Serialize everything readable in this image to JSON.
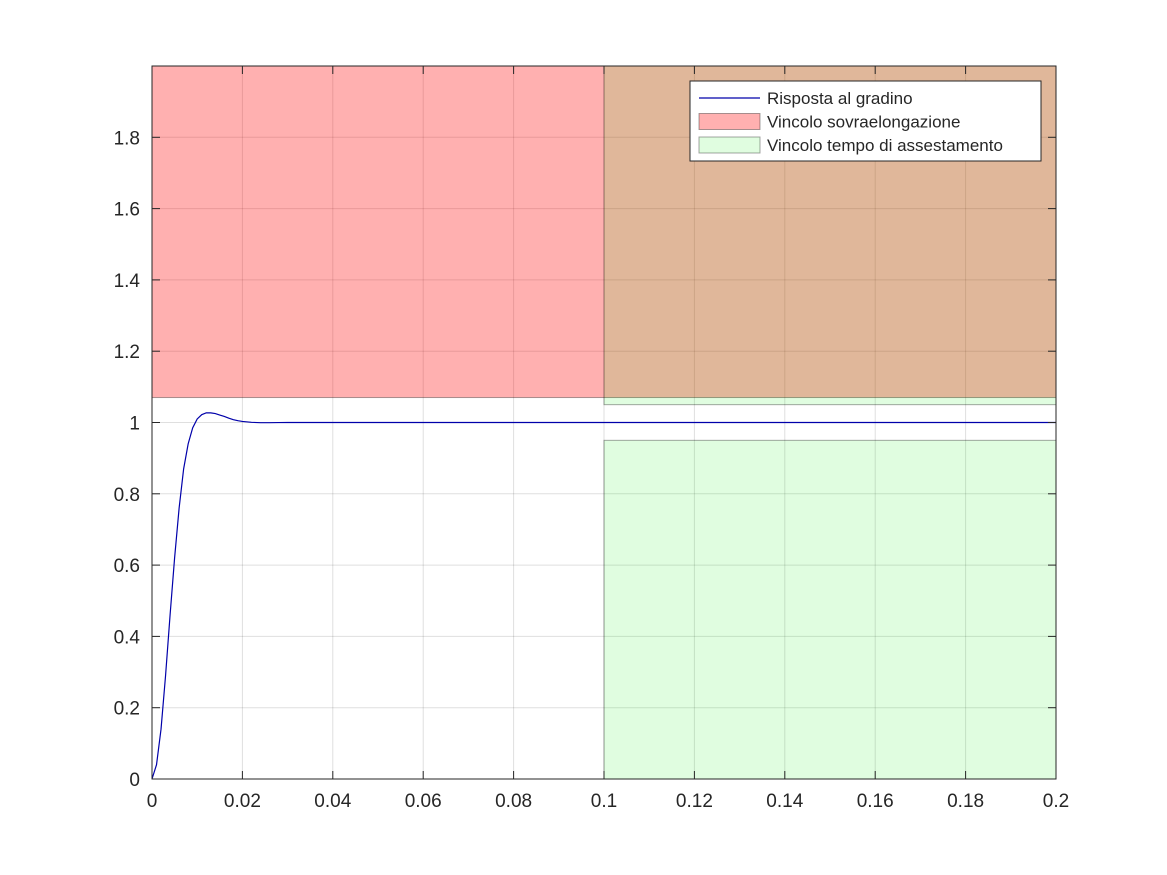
{
  "chart_data": {
    "type": "line",
    "title": "",
    "xlabel": "",
    "ylabel": "",
    "xlim": [
      0,
      0.2
    ],
    "ylim": [
      0,
      2
    ],
    "grid": true,
    "legend_position": "top-right",
    "x_ticks": [
      {
        "value": 0,
        "label": "0"
      },
      {
        "value": 0.02,
        "label": "0.02"
      },
      {
        "value": 0.04,
        "label": "0.04"
      },
      {
        "value": 0.06,
        "label": "0.06"
      },
      {
        "value": 0.08,
        "label": "0.08"
      },
      {
        "value": 0.1,
        "label": "0.1"
      },
      {
        "value": 0.12,
        "label": "0.12"
      },
      {
        "value": 0.14,
        "label": "0.14"
      },
      {
        "value": 0.16,
        "label": "0.16"
      },
      {
        "value": 0.18,
        "label": "0.18"
      },
      {
        "value": 0.2,
        "label": "0.2"
      }
    ],
    "y_ticks": [
      {
        "value": 0,
        "label": "0"
      },
      {
        "value": 0.2,
        "label": "0.2"
      },
      {
        "value": 0.4,
        "label": "0.4"
      },
      {
        "value": 0.6,
        "label": "0.6"
      },
      {
        "value": 0.8,
        "label": "0.8"
      },
      {
        "value": 1,
        "label": "1"
      },
      {
        "value": 1.2,
        "label": "1.2"
      },
      {
        "value": 1.4,
        "label": "1.4"
      },
      {
        "value": 1.6,
        "label": "1.6"
      },
      {
        "value": 1.8,
        "label": "1.8"
      }
    ],
    "series": [
      {
        "name": "Risposta al gradino",
        "kind": "line",
        "color": "#0000aa",
        "x": [
          0,
          0.001,
          0.002,
          0.003,
          0.004,
          0.005,
          0.006,
          0.007,
          0.008,
          0.009,
          0.01,
          0.011,
          0.012,
          0.013,
          0.014,
          0.015,
          0.016,
          0.017,
          0.018,
          0.019,
          0.02,
          0.022,
          0.024,
          0.026,
          0.028,
          0.03,
          0.04,
          0.06,
          0.08,
          0.1,
          0.12,
          0.14,
          0.16,
          0.18,
          0.2
        ],
        "y": [
          0,
          0.04,
          0.14,
          0.29,
          0.46,
          0.62,
          0.76,
          0.87,
          0.94,
          0.985,
          1.01,
          1.022,
          1.027,
          1.027,
          1.025,
          1.021,
          1.017,
          1.012,
          1.008,
          1.005,
          1.003,
          1.0005,
          0.9995,
          0.9995,
          0.9998,
          1.0,
          1.0,
          1.0,
          1.0,
          1.0,
          1.0,
          1.0,
          1.0,
          1.0,
          1.0
        ]
      },
      {
        "name": "Vincolo sovraelongazione",
        "kind": "region",
        "color": "#ff0000",
        "opacity": 0.31,
        "x_range": [
          0,
          0.2
        ],
        "y_range": [
          1.07,
          2
        ]
      },
      {
        "name": "Vincolo tempo di assestamento",
        "kind": "region",
        "color": "#00ee00",
        "opacity": 0.12,
        "parts": [
          {
            "x_range": [
              0.1,
              0.2
            ],
            "y_range": [
              0,
              0.95
            ]
          },
          {
            "x_range": [
              0.1,
              0.2
            ],
            "y_range": [
              1.05,
              2
            ]
          }
        ]
      }
    ]
  }
}
